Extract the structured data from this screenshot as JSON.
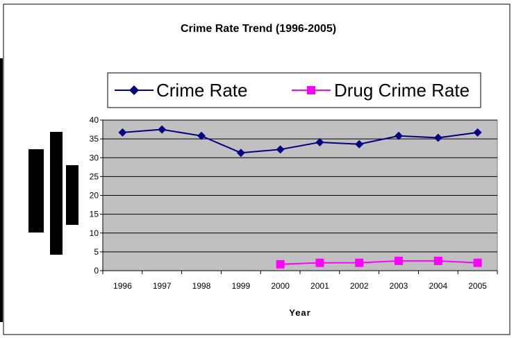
{
  "chart_data": {
    "type": "line",
    "title": "Crime Rate Trend (1996-2005)",
    "xlabel": "Year",
    "ylabel": "",
    "categories": [
      "1996",
      "1997",
      "1998",
      "1999",
      "2000",
      "2001",
      "2002",
      "2003",
      "2004",
      "2005"
    ],
    "ylim": [
      0,
      40
    ],
    "yticks": [
      0,
      5,
      10,
      15,
      20,
      25,
      30,
      35,
      40
    ],
    "grid": true,
    "legend_position": "top",
    "series": [
      {
        "name": "Crime Rate",
        "color": "#000080",
        "marker": "diamond",
        "values": [
          36.7,
          37.5,
          35.8,
          31.3,
          32.2,
          34.1,
          33.6,
          35.8,
          35.3,
          36.7
        ]
      },
      {
        "name": "Drug Crime Rate",
        "color": "#ff00ff",
        "marker": "square",
        "values": [
          null,
          null,
          null,
          null,
          1.7,
          2.1,
          2.1,
          2.6,
          2.6,
          2.1
        ]
      }
    ],
    "colors": {
      "plot_background": "#c0c0c0",
      "gridline": "#000000"
    }
  }
}
